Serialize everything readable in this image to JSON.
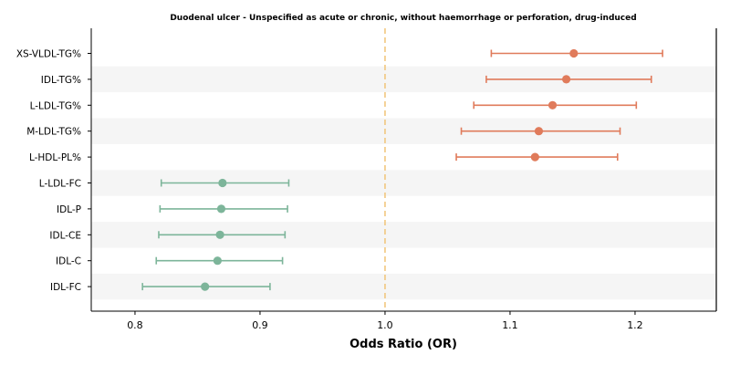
{
  "chart_data": {
    "type": "forest",
    "title": "Duodenal ulcer - Unspecified as acute or chronic, without haemorrhage or perforation, drug-induced",
    "xlabel": "Odds Ratio (OR)",
    "xlim": [
      0.765,
      1.265
    ],
    "xticks": [
      0.8,
      0.9,
      1.0,
      1.1,
      1.2
    ],
    "xtick_labels": [
      "0.8",
      "0.9",
      "1.0",
      "1.1",
      "1.2"
    ],
    "reference_line": 1.0,
    "grid": false,
    "colors": {
      "positive": "#e07b5b",
      "negative": "#7db59a",
      "reference": "#f2c77f",
      "band": "#f5f5f5"
    },
    "rows": [
      {
        "label": "XS-VLDL-TG%",
        "or": 1.151,
        "ci_low": 1.085,
        "ci_high": 1.222
      },
      {
        "label": "IDL-TG%",
        "or": 1.145,
        "ci_low": 1.081,
        "ci_high": 1.213
      },
      {
        "label": "L-LDL-TG%",
        "or": 1.134,
        "ci_low": 1.071,
        "ci_high": 1.201
      },
      {
        "label": "M-LDL-TG%",
        "or": 1.123,
        "ci_low": 1.061,
        "ci_high": 1.188
      },
      {
        "label": "L-HDL-PL%",
        "or": 1.12,
        "ci_low": 1.057,
        "ci_high": 1.186
      },
      {
        "label": "L-LDL-FC",
        "or": 0.87,
        "ci_low": 0.821,
        "ci_high": 0.923
      },
      {
        "label": "IDL-P",
        "or": 0.869,
        "ci_low": 0.82,
        "ci_high": 0.922
      },
      {
        "label": "IDL-CE",
        "or": 0.868,
        "ci_low": 0.819,
        "ci_high": 0.92
      },
      {
        "label": "IDL-C",
        "or": 0.866,
        "ci_low": 0.817,
        "ci_high": 0.918
      },
      {
        "label": "IDL-FC",
        "or": 0.856,
        "ci_low": 0.806,
        "ci_high": 0.908
      }
    ]
  }
}
